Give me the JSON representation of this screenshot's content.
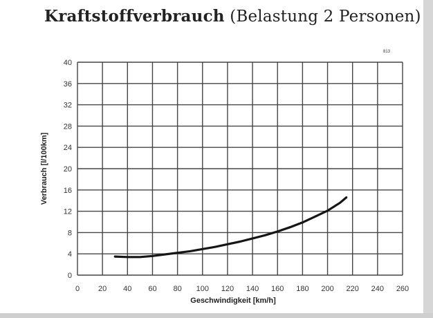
{
  "title": {
    "bold": "Kraftstoffverbrauch",
    "normal": "(Belastung 2 Personen)"
  },
  "ref_code": "813",
  "chart_data": {
    "type": "line",
    "title": "Kraftstoffverbrauch (Belastung 2 Personen)",
    "xlabel": "Geschwindigkeit [km/h]",
    "ylabel": "Verbrauch [l/100km]",
    "xlim": [
      0,
      260
    ],
    "ylim": [
      0,
      40
    ],
    "x_ticks": [
      0,
      20,
      40,
      60,
      80,
      100,
      120,
      140,
      160,
      180,
      200,
      220,
      240,
      260
    ],
    "y_ticks": [
      0,
      4,
      8,
      12,
      16,
      20,
      24,
      28,
      32,
      36,
      40
    ],
    "grid": true,
    "series": [
      {
        "x": [
          30,
          40,
          50,
          60,
          70,
          80,
          90,
          100,
          110,
          120,
          130,
          140,
          150,
          160,
          170,
          180,
          190,
          200,
          210,
          215
        ],
        "y": [
          3.5,
          3.4,
          3.4,
          3.6,
          3.9,
          4.2,
          4.5,
          4.9,
          5.3,
          5.8,
          6.3,
          6.9,
          7.5,
          8.2,
          9.0,
          9.9,
          11.0,
          12.1,
          13.6,
          14.6
        ]
      }
    ]
  }
}
